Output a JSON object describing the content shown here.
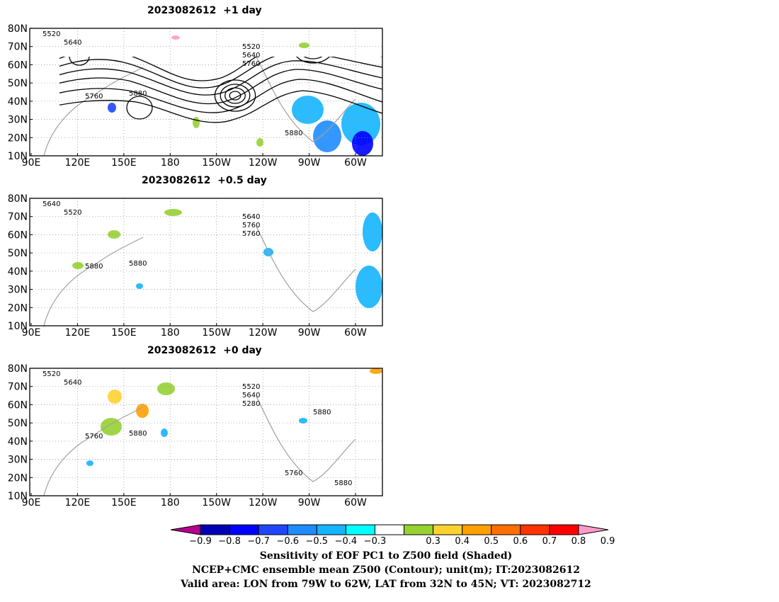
{
  "panels": [
    {
      "title": "2023082612  +1 day",
      "contour_labels": [
        "5520",
        "5640",
        "5520",
        "5640",
        "5760",
        "5760",
        "5880",
        "5880"
      ]
    },
    {
      "title": "2023082612  +0.5 day",
      "contour_labels": [
        "5640",
        "5520",
        "5640",
        "5760",
        "5760",
        "5880",
        "5880"
      ]
    },
    {
      "title": "2023082612  +0 day",
      "contour_labels": [
        "5520",
        "5640",
        "5520",
        "5640",
        "5280",
        "5760",
        "5880",
        "5760",
        "5880",
        "5880"
      ]
    }
  ],
  "map": {
    "lon_ticks": [
      "90E",
      "120E",
      "150E",
      "180",
      "150W",
      "120W",
      "90W",
      "60W"
    ],
    "lat_ticks": [
      "80N",
      "70N",
      "60N",
      "50N",
      "40N",
      "30N",
      "20N",
      "10N"
    ]
  },
  "colorbar": {
    "labels": [
      "−0.9",
      "−0.8",
      "−0.7",
      "−0.6",
      "−0.5",
      "−0.4",
      "−0.3",
      "0.3",
      "0.4",
      "0.5",
      "0.6",
      "0.7",
      "0.8",
      "0.9"
    ],
    "colors": [
      "#b4008c",
      "#0000b4",
      "#0000ff",
      "#1e46ff",
      "#1e8cff",
      "#14b4ff",
      "#00ffff",
      "#ffffff",
      "#96d232",
      "#ffd232",
      "#ffa000",
      "#ff6e00",
      "#ff3200",
      "#ff0000",
      "#ff9bc8"
    ]
  },
  "captions": [
    "Sensitivity of EOF PC1 to Z500 field (Shaded)",
    "NCEP+CMC ensemble mean Z500 (Contour); unit(m); IT:2023082612",
    "Valid area: LON from 79W to 62W, LAT from 32N to 45N; VT: 2023082712"
  ]
}
